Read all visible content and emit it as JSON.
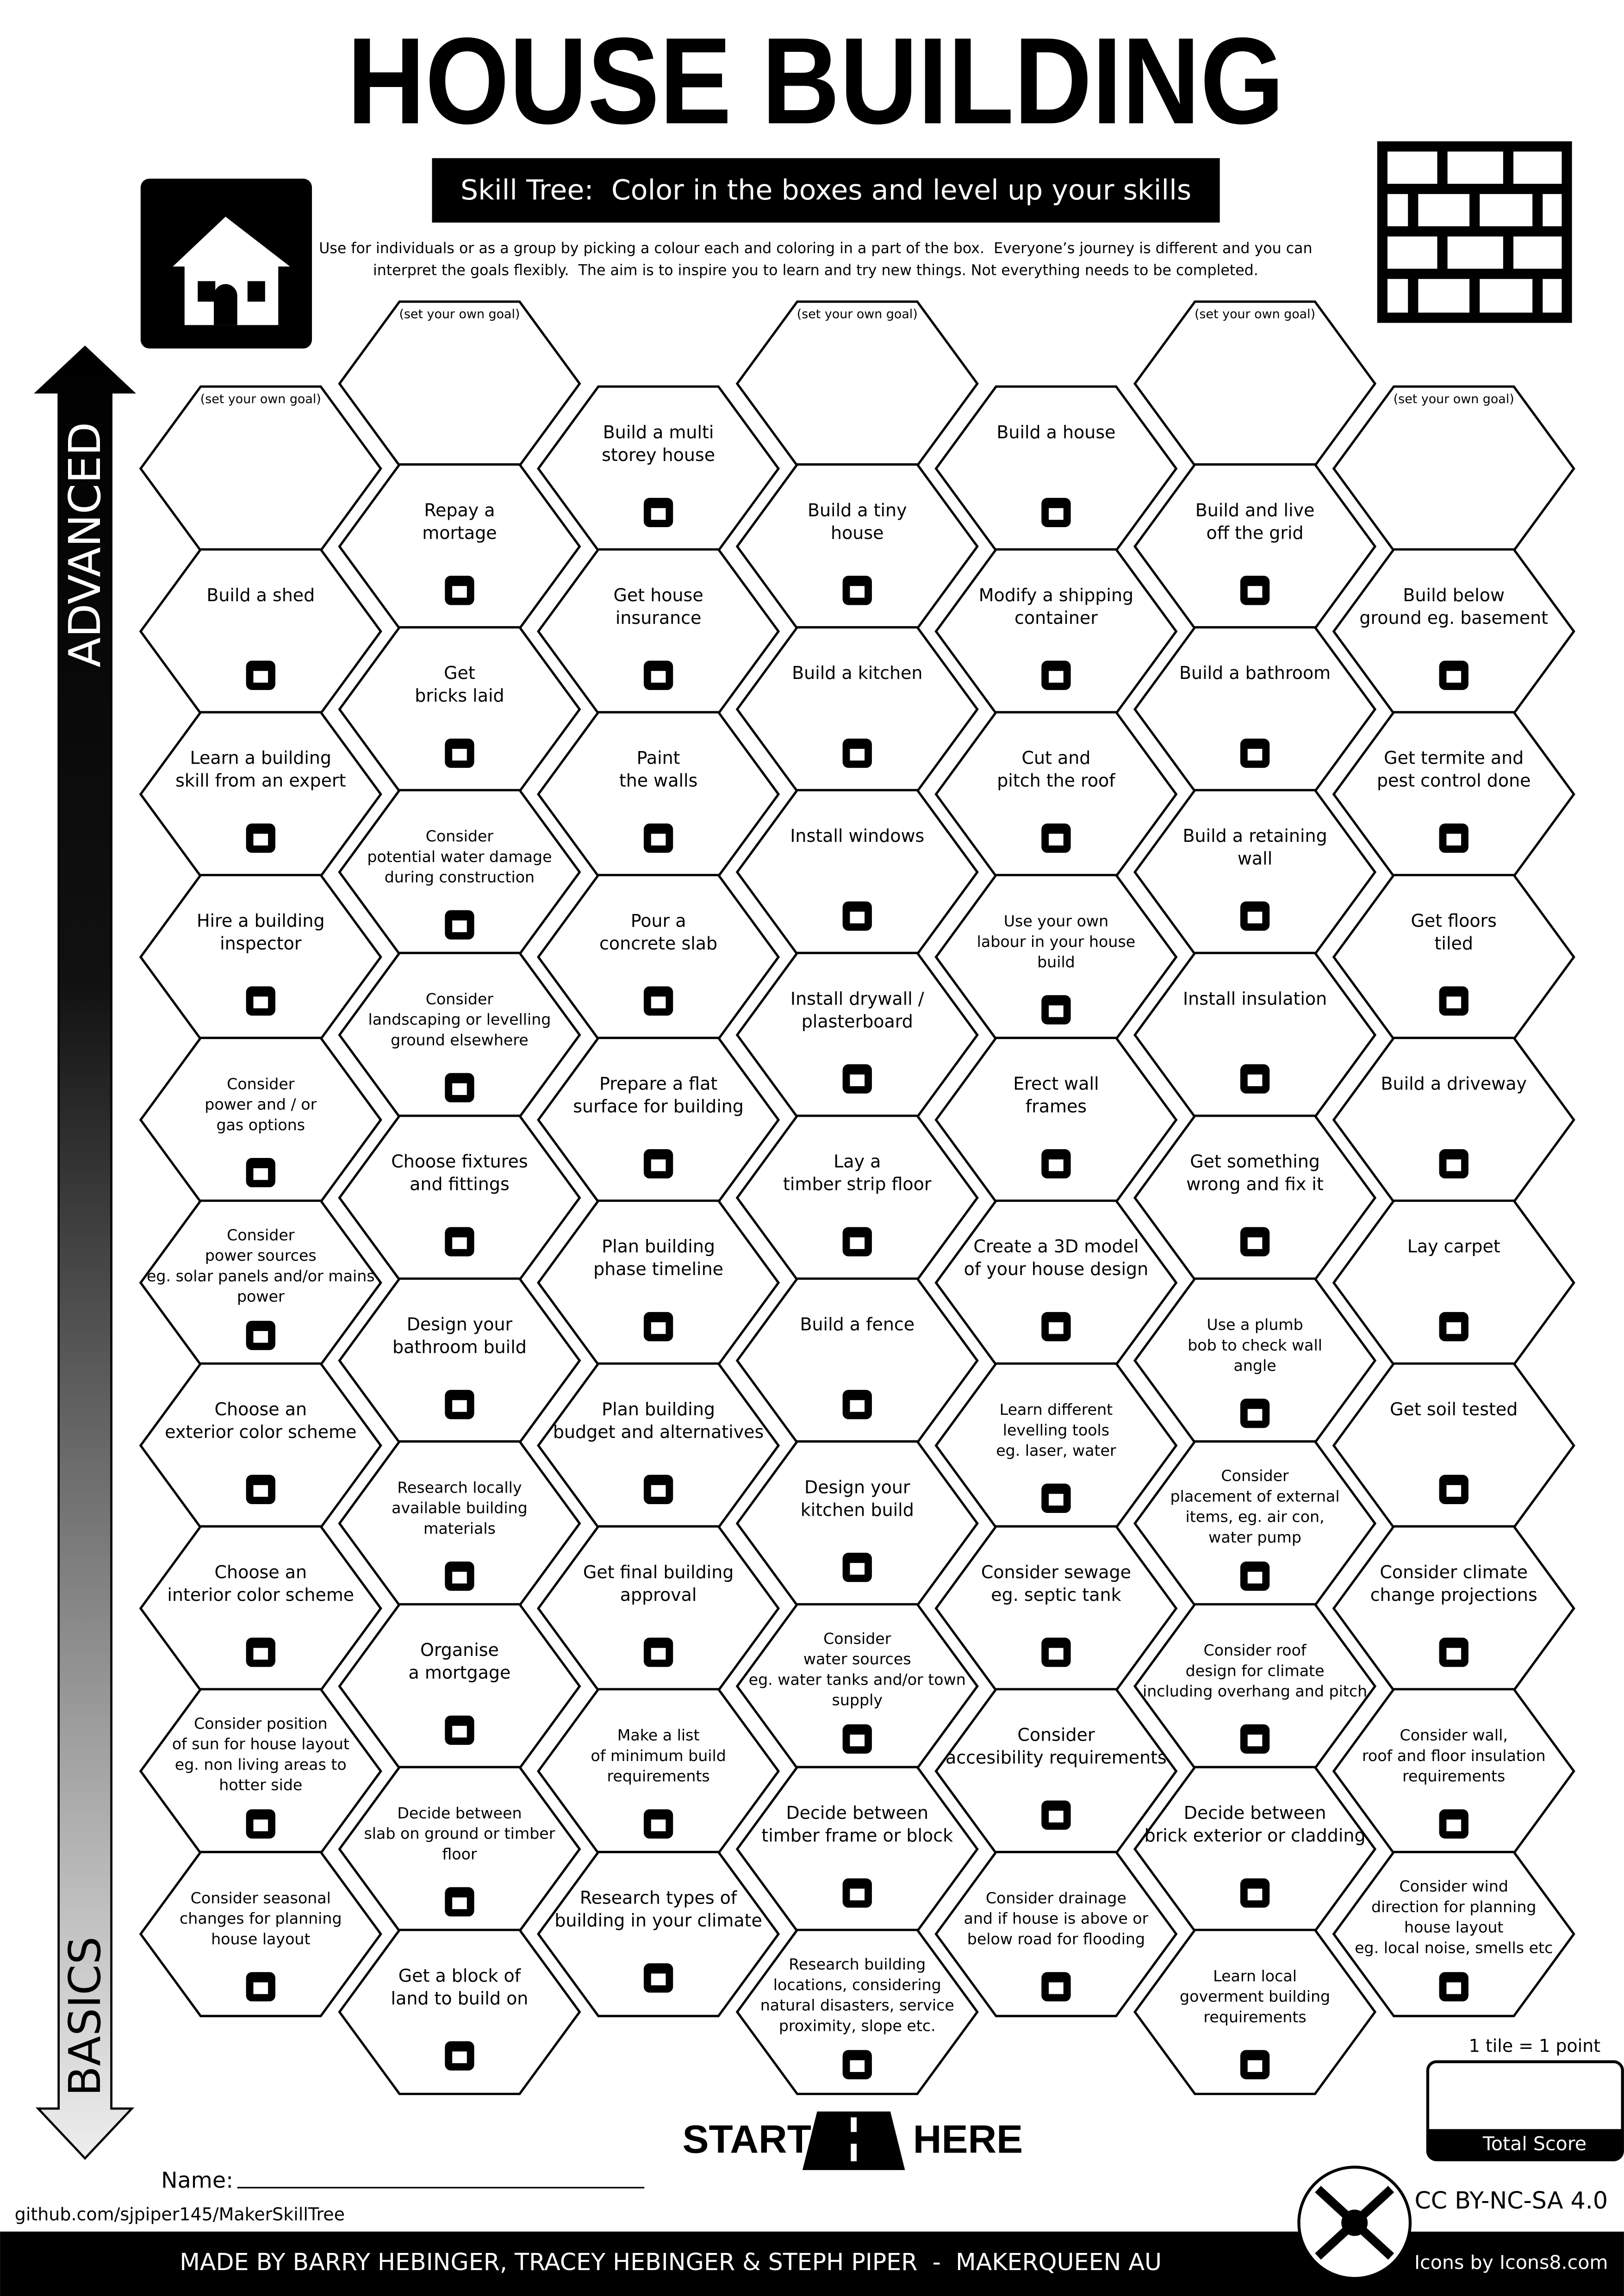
{
  "header": {
    "title": "HOUSE BUILDING",
    "subtitle": "Skill Tree:  Color in the boxes and level up your skills",
    "description": [
      "Use for individuals or as a group by picking a colour each and coloring in a part of the box.  Everyone’s journey is different and you can",
      "interpret the goals flexibly.  The aim is to inspire you to learn and try new things. Not everything needs to be completed."
    ]
  },
  "axis": {
    "top": "ADVANCED",
    "bottom": "BASICS"
  },
  "columns": [
    [
      "(set your own goal)",
      [
        "Build a shed"
      ],
      [
        "Learn a building",
        "skill from an expert"
      ],
      [
        "Hire a building",
        "inspector"
      ],
      [
        "Consider",
        "power and / or",
        "gas options"
      ],
      [
        "Consider",
        "power sources",
        "eg. solar panels and/or mains",
        "power"
      ],
      [
        "Choose an",
        "exterior color scheme"
      ],
      [
        "Choose an",
        "interior color scheme"
      ],
      [
        "Consider position",
        "of sun for house layout",
        "eg. non living areas to",
        "hotter side"
      ],
      [
        "Consider seasonal",
        "changes for planning",
        "house layout"
      ]
    ],
    [
      "(set your own goal)",
      [
        "Repay a",
        "mortage"
      ],
      [
        "Get",
        "bricks laid"
      ],
      [
        "Consider",
        "potential water damage",
        "during construction"
      ],
      [
        "Consider",
        "landscaping or levelling",
        "ground elsewhere"
      ],
      [
        "Choose fixtures",
        "and fittings"
      ],
      [
        "Design your",
        "bathroom build"
      ],
      [
        "Research locally",
        "available building",
        "materials"
      ],
      [
        "Organise",
        "a mortgage"
      ],
      [
        "Decide between",
        "slab on ground or timber",
        "floor"
      ],
      [
        "Get a block of",
        "land to build on"
      ]
    ],
    [
      [
        "Build a multi",
        "storey house"
      ],
      [
        "Get house",
        "insurance"
      ],
      [
        "Paint",
        "the walls"
      ],
      [
        "Pour a",
        "concrete slab"
      ],
      [
        "Prepare a flat",
        "surface for building"
      ],
      [
        "Plan building",
        "phase timeline"
      ],
      [
        "Plan building",
        "budget and alternatives"
      ],
      [
        "Get final building",
        "approval"
      ],
      [
        "Make a list",
        "of minimum build",
        "requirements"
      ],
      [
        "Research types of",
        "building in your climate"
      ]
    ],
    [
      "(set your own goal)",
      [
        "Build a tiny",
        "house"
      ],
      [
        "Build a kitchen"
      ],
      [
        "Install windows"
      ],
      [
        "Install drywall /",
        "plasterboard"
      ],
      [
        "Lay a",
        "timber strip floor"
      ],
      [
        "Build a fence"
      ],
      [
        "Design your",
        "kitchen build"
      ],
      [
        "Consider",
        "water sources",
        "eg. water tanks and/or town",
        "supply"
      ],
      [
        "Decide between",
        "timber frame or block"
      ],
      [
        "Research building",
        "locations, considering",
        "natural disasters, service",
        "proximity, slope etc."
      ]
    ],
    [
      [
        "Build a house"
      ],
      [
        "Modify a shipping",
        "container"
      ],
      [
        "Cut and",
        "pitch the roof"
      ],
      [
        "Use your own",
        "labour in your house",
        "build"
      ],
      [
        "Erect wall",
        "frames"
      ],
      [
        "Create a 3D model",
        "of your house design"
      ],
      [
        "Learn different",
        "levelling tools",
        "eg. laser, water"
      ],
      [
        "Consider sewage",
        "eg. septic tank"
      ],
      [
        "Consider",
        "accesibility requirements"
      ],
      [
        "Consider drainage",
        "and if house is above or",
        "below road for flooding"
      ]
    ],
    [
      "(set your own goal)",
      [
        "Build and live",
        "off the grid"
      ],
      [
        "Build a bathroom"
      ],
      [
        "Build a retaining",
        "wall"
      ],
      [
        "Install insulation"
      ],
      [
        "Get something",
        "wrong and fix it"
      ],
      [
        "Use a plumb",
        "bob to check wall",
        "angle"
      ],
      [
        "Consider",
        "placement of external",
        "items, eg. air con,",
        "water pump"
      ],
      [
        "Consider roof",
        "design for climate",
        "including overhang and pitch"
      ],
      [
        "Decide between",
        "brick exterior or cladding"
      ],
      [
        "Learn local",
        "goverment building",
        "requirements"
      ]
    ],
    [
      "(set your own goal)",
      [
        "Build below",
        "ground eg. basement"
      ],
      [
        "Get termite and",
        "pest control done"
      ],
      [
        "Get floors",
        "tiled"
      ],
      [
        "Build a driveway"
      ],
      [
        "Lay carpet"
      ],
      [
        "Get soil tested"
      ],
      [
        "Consider climate",
        "change projections"
      ],
      [
        "Consider wall,",
        "roof and floor insulation",
        "requirements"
      ],
      [
        "Consider wind",
        "direction for planning",
        "house layout",
        "eg. local noise, smells etc"
      ]
    ]
  ],
  "start": {
    "left": "START",
    "right": "HERE"
  },
  "score": {
    "rule": "1 tile = 1 point",
    "label": "Total Score"
  },
  "name_label": "Name:",
  "github": "github.com/sjpiper145/MakerSkillTree",
  "license": "CC BY-NC-SA 4.0",
  "footer": {
    "credits": "MADE BY BARRY HEBINGER, TRACEY HEBINGER & STEPH PIPER  -  MAKERQUEEN AU",
    "icons": "Icons by Icons8.com"
  }
}
